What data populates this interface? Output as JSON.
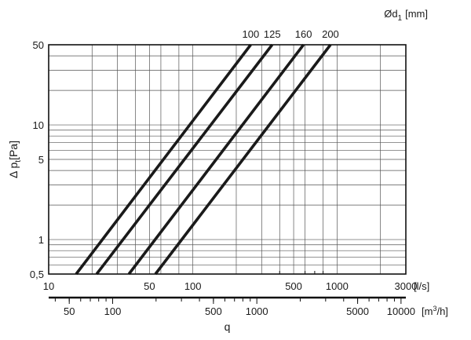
{
  "chart_data": {
    "type": "line",
    "x_scale": "log",
    "y_scale": "log",
    "xlabel": "q",
    "ylabel": "Δ p",
    "ylabel_sub": "t",
    "ylabel_unit": "[Pa]",
    "x_unit_ls": "[l/s]",
    "x_unit_m3h": "[m3/h]",
    "x_unit_m3h_base": "[m",
    "x_unit_m3h_sup": "3",
    "x_unit_m3h_tail": "/h]",
    "legend_title": "Ød",
    "legend_title_sub": "1",
    "legend_title_unit": "[mm]",
    "xlim_ls": [
      10,
      3000
    ],
    "ylim": [
      0.5,
      50
    ],
    "grid": true,
    "y_ticks": [
      {
        "value": 0.5,
        "label": "0,5"
      },
      {
        "value": 1,
        "label": "1"
      },
      {
        "value": 5,
        "label": "5"
      },
      {
        "value": 10,
        "label": "10"
      },
      {
        "value": 50,
        "label": "50"
      }
    ],
    "x_ticks_ls": [
      {
        "value": 10,
        "label": "10"
      },
      {
        "value": 50,
        "label": "50"
      },
      {
        "value": 100,
        "label": "100"
      },
      {
        "value": 500,
        "label": "500"
      },
      {
        "value": 1000,
        "label": "1000"
      },
      {
        "value": 3000,
        "label": "3000"
      }
    ],
    "x_ticks_m3h": [
      {
        "value": 50,
        "label": "50"
      },
      {
        "value": 100,
        "label": "100"
      },
      {
        "value": 500,
        "label": "500"
      },
      {
        "value": 1000,
        "label": "1000"
      },
      {
        "value": 5000,
        "label": "5000"
      },
      {
        "value": 10000,
        "label": "10000"
      }
    ],
    "series": [
      {
        "name": "100",
        "points": [
          [
            15.5,
            0.5
          ],
          [
            252,
            50
          ]
        ]
      },
      {
        "name": "125",
        "points": [
          [
            21.5,
            0.5
          ],
          [
            355,
            50
          ]
        ]
      },
      {
        "name": "160",
        "points": [
          [
            36,
            0.5
          ],
          [
            585,
            50
          ]
        ]
      },
      {
        "name": "200",
        "points": [
          [
            55,
            0.5
          ],
          [
            900,
            50
          ]
        ]
      }
    ]
  }
}
